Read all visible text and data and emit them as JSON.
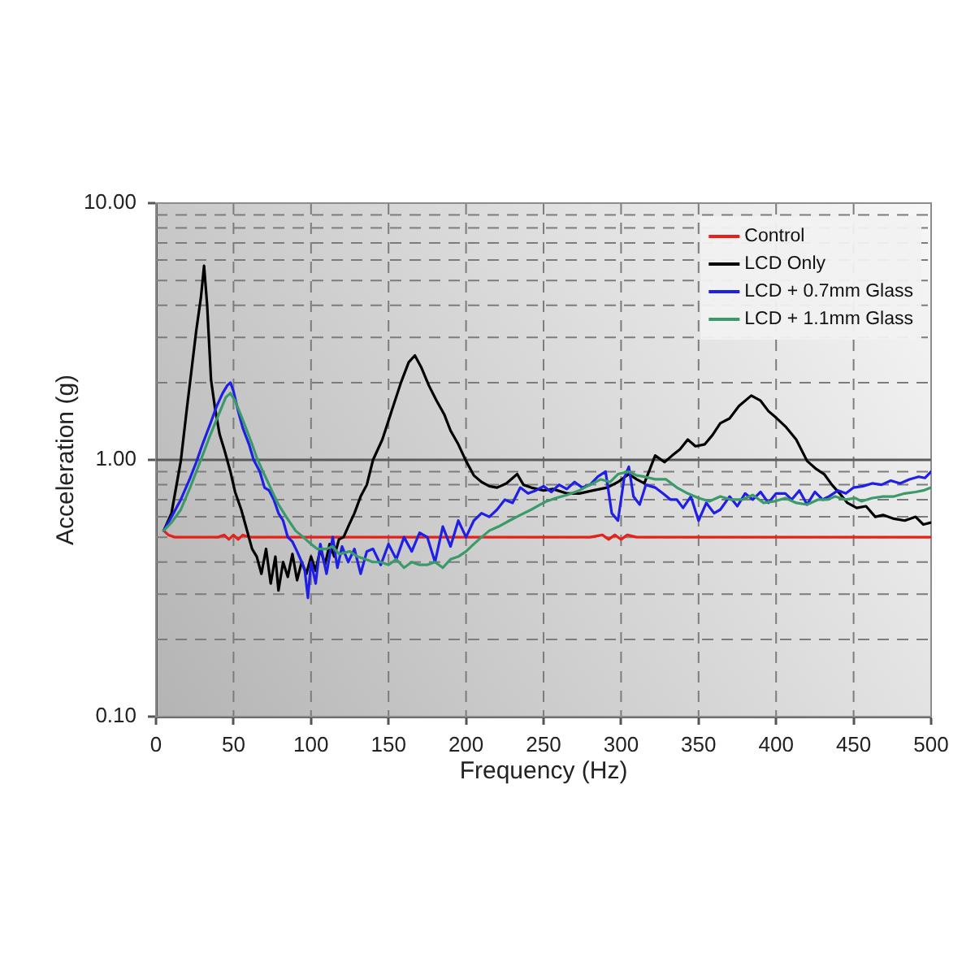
{
  "chart_data": {
    "type": "line",
    "xlabel": "Frequency (Hz)",
    "ylabel": "Acceleration (g)",
    "xlim": [
      0,
      500
    ],
    "xticks": [
      0,
      50,
      100,
      150,
      200,
      250,
      300,
      350,
      400,
      450,
      500
    ],
    "ylim": [
      0.1,
      10
    ],
    "yticks": [
      {
        "value": 0.1,
        "label": "0.10"
      },
      {
        "value": 0.2,
        "label": null
      },
      {
        "value": 0.3,
        "label": null
      },
      {
        "value": 0.4,
        "label": null
      },
      {
        "value": 0.5,
        "label": null
      },
      {
        "value": 0.6,
        "label": null
      },
      {
        "value": 0.7,
        "label": null
      },
      {
        "value": 0.8,
        "label": null
      },
      {
        "value": 0.9,
        "label": null
      },
      {
        "value": 1,
        "label": "1.00"
      },
      {
        "value": 2,
        "label": null
      },
      {
        "value": 3,
        "label": null
      },
      {
        "value": 4,
        "label": null
      },
      {
        "value": 5,
        "label": null
      },
      {
        "value": 6,
        "label": null
      },
      {
        "value": 7,
        "label": null
      },
      {
        "value": 8,
        "label": null
      },
      {
        "value": 9,
        "label": null
      },
      {
        "value": 10,
        "label": "10.00"
      }
    ],
    "log": "y",
    "grid": true,
    "legend": "top right",
    "marker": "none",
    "ref_lines": [
      {
        "axis": "y",
        "value": 1,
        "color": "#5a5a5a",
        "line_style": "solid"
      }
    ],
    "series": [
      {
        "name": "Control",
        "color": "#e8201c",
        "x": [
          5,
          8,
          12,
          20,
          30,
          40,
          44,
          47,
          50,
          53,
          56,
          60,
          70,
          80,
          100,
          130,
          160,
          200,
          240,
          280,
          288,
          292,
          296,
          300,
          304,
          310,
          350,
          400,
          450,
          500
        ],
        "values": [
          0.53,
          0.51,
          0.5,
          0.5,
          0.5,
          0.5,
          0.51,
          0.49,
          0.51,
          0.49,
          0.51,
          0.5,
          0.5,
          0.5,
          0.5,
          0.5,
          0.5,
          0.5,
          0.5,
          0.5,
          0.51,
          0.49,
          0.51,
          0.49,
          0.51,
          0.5,
          0.5,
          0.5,
          0.5,
          0.5
        ]
      },
      {
        "name": "LCD Only",
        "color": "#000000",
        "x": [
          5,
          10,
          16,
          20,
          23,
          26,
          29,
          31,
          33,
          35.5,
          38,
          41,
          44,
          48,
          51,
          55,
          58,
          62,
          65,
          68,
          71,
          74,
          77,
          79,
          82,
          85,
          88,
          91,
          94,
          97,
          100,
          103,
          106,
          109,
          112,
          115,
          118,
          121,
          124,
          128,
          132,
          136,
          140,
          146,
          152,
          158,
          163,
          167,
          171,
          176,
          181,
          186,
          190,
          195,
          200,
          205,
          210,
          215,
          220,
          226,
          233,
          237,
          242,
          250,
          256,
          265,
          273,
          282,
          291,
          298,
          305,
          310,
          315,
          322,
          328,
          333,
          338,
          343,
          348,
          354,
          359,
          364,
          370,
          376,
          384,
          390,
          395,
          400,
          406,
          413,
          420,
          426,
          431,
          436,
          441,
          446,
          452,
          458,
          464,
          469,
          476,
          483,
          490,
          495,
          500
        ],
        "values": [
          0.53,
          0.62,
          0.99,
          1.6,
          2.26,
          3.2,
          4.3,
          5.7,
          4.0,
          2.05,
          1.6,
          1.26,
          1.1,
          0.9,
          0.75,
          0.64,
          0.55,
          0.45,
          0.42,
          0.36,
          0.45,
          0.33,
          0.42,
          0.31,
          0.4,
          0.35,
          0.43,
          0.34,
          0.4,
          0.36,
          0.42,
          0.37,
          0.45,
          0.39,
          0.47,
          0.42,
          0.49,
          0.5,
          0.55,
          0.62,
          0.72,
          0.8,
          1.0,
          1.2,
          1.55,
          2.0,
          2.4,
          2.55,
          2.3,
          1.95,
          1.7,
          1.5,
          1.3,
          1.15,
          0.99,
          0.87,
          0.82,
          0.79,
          0.78,
          0.81,
          0.88,
          0.8,
          0.78,
          0.76,
          0.77,
          0.74,
          0.74,
          0.76,
          0.78,
          0.82,
          0.88,
          0.84,
          0.81,
          1.04,
          0.98,
          1.04,
          1.1,
          1.2,
          1.13,
          1.15,
          1.25,
          1.39,
          1.45,
          1.62,
          1.78,
          1.7,
          1.55,
          1.46,
          1.35,
          1.2,
          0.99,
          0.92,
          0.88,
          0.8,
          0.74,
          0.68,
          0.65,
          0.66,
          0.6,
          0.61,
          0.59,
          0.58,
          0.6,
          0.56,
          0.57
        ]
      },
      {
        "name": "LCD + 0.7mm Glass",
        "color": "#1f1fe6",
        "x": [
          5,
          10,
          16,
          22,
          26,
          30,
          35,
          39,
          43,
          46,
          48,
          50,
          53,
          56,
          60,
          63,
          67,
          70,
          73,
          76,
          79,
          82,
          85,
          88,
          91,
          94,
          96,
          98,
          100,
          103,
          106,
          110,
          114,
          117,
          120,
          124,
          128,
          132,
          136,
          140,
          145,
          150,
          155,
          160,
          165,
          170,
          175,
          180,
          185,
          190,
          195,
          200,
          205,
          210,
          215,
          220,
          225,
          230,
          235,
          240,
          245,
          250,
          255,
          260,
          265,
          270,
          275,
          280,
          285,
          290,
          294,
          298,
          302,
          305,
          308,
          312,
          316,
          322,
          327,
          332,
          336,
          340,
          345,
          350,
          355,
          360,
          364,
          370,
          375,
          380,
          385,
          390,
          395,
          400,
          406,
          410,
          415,
          420,
          425,
          430,
          434,
          440,
          445,
          450,
          456,
          462,
          468,
          474,
          480,
          486,
          492,
          496,
          500
        ],
        "values": [
          0.53,
          0.6,
          0.7,
          0.85,
          0.98,
          1.15,
          1.38,
          1.61,
          1.82,
          1.95,
          2.0,
          1.85,
          1.55,
          1.33,
          1.15,
          1.0,
          0.9,
          0.78,
          0.76,
          0.7,
          0.62,
          0.58,
          0.5,
          0.48,
          0.44,
          0.4,
          0.37,
          0.29,
          0.4,
          0.33,
          0.47,
          0.36,
          0.5,
          0.38,
          0.46,
          0.4,
          0.45,
          0.36,
          0.44,
          0.45,
          0.39,
          0.47,
          0.41,
          0.5,
          0.44,
          0.52,
          0.5,
          0.4,
          0.55,
          0.46,
          0.58,
          0.5,
          0.58,
          0.62,
          0.6,
          0.64,
          0.7,
          0.68,
          0.78,
          0.74,
          0.76,
          0.79,
          0.75,
          0.8,
          0.77,
          0.82,
          0.78,
          0.8,
          0.86,
          0.9,
          0.62,
          0.58,
          0.85,
          0.94,
          0.72,
          0.67,
          0.8,
          0.78,
          0.74,
          0.7,
          0.7,
          0.65,
          0.72,
          0.58,
          0.68,
          0.62,
          0.64,
          0.72,
          0.66,
          0.74,
          0.7,
          0.75,
          0.68,
          0.74,
          0.74,
          0.7,
          0.76,
          0.67,
          0.75,
          0.7,
          0.72,
          0.76,
          0.74,
          0.78,
          0.79,
          0.81,
          0.8,
          0.83,
          0.81,
          0.84,
          0.86,
          0.85,
          0.9
        ]
      },
      {
        "name": "LCD + 1.1mm Glass",
        "color": "#3a9a6a",
        "x": [
          5,
          10,
          16,
          22,
          26,
          30,
          35,
          41,
          45,
          48,
          51,
          55,
          58,
          62,
          65,
          69,
          73,
          76,
          79,
          84,
          90,
          95,
          100,
          104,
          110,
          114,
          118,
          125,
          130,
          135,
          140,
          145,
          150,
          155,
          160,
          165,
          170,
          175,
          180,
          185,
          190,
          195,
          200,
          205,
          210,
          215,
          221,
          228,
          235,
          242,
          248,
          252,
          258,
          265,
          273,
          280,
          287,
          293,
          298,
          305,
          310,
          315,
          322,
          329,
          336,
          343,
          350,
          357,
          364,
          371,
          378,
          385,
          392,
          399,
          406,
          413,
          420,
          427,
          433,
          438,
          445,
          451,
          455,
          462,
          469,
          476,
          483,
          490,
          495,
          500
        ],
        "values": [
          0.53,
          0.57,
          0.64,
          0.78,
          0.9,
          1.04,
          1.25,
          1.53,
          1.75,
          1.82,
          1.7,
          1.48,
          1.33,
          1.15,
          1.02,
          0.9,
          0.8,
          0.73,
          0.67,
          0.6,
          0.53,
          0.5,
          0.47,
          0.45,
          0.45,
          0.46,
          0.43,
          0.44,
          0.42,
          0.41,
          0.4,
          0.4,
          0.39,
          0.41,
          0.38,
          0.4,
          0.39,
          0.39,
          0.4,
          0.38,
          0.41,
          0.42,
          0.44,
          0.47,
          0.5,
          0.53,
          0.55,
          0.58,
          0.61,
          0.64,
          0.67,
          0.69,
          0.71,
          0.73,
          0.76,
          0.8,
          0.84,
          0.82,
          0.88,
          0.9,
          0.87,
          0.86,
          0.84,
          0.84,
          0.78,
          0.74,
          0.71,
          0.69,
          0.72,
          0.7,
          0.7,
          0.73,
          0.68,
          0.69,
          0.71,
          0.68,
          0.67,
          0.7,
          0.7,
          0.72,
          0.7,
          0.71,
          0.69,
          0.71,
          0.72,
          0.72,
          0.74,
          0.75,
          0.76,
          0.78
        ]
      }
    ]
  }
}
